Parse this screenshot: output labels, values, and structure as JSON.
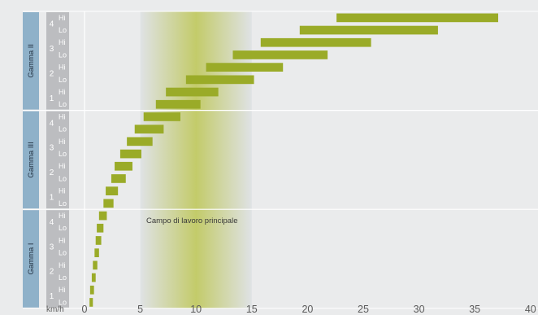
{
  "chart_data": {
    "type": "bar",
    "orientation": "horizontal-range",
    "x_unit": "km/h",
    "x_ticks": [
      0,
      5,
      10,
      15,
      20,
      25,
      30,
      35,
      40
    ],
    "xlim": [
      0,
      40
    ],
    "annotation": "Campo di lavoro principale",
    "highlight_range": [
      5,
      15
    ],
    "colors": {
      "bar": "#9aab28",
      "group_band": "#8fb1c9",
      "gear_band": "#bcbdc0",
      "highlight": "#c3cb6a",
      "grid": "#ffffff"
    },
    "groups": [
      {
        "name": "Gamma II",
        "rows": [
          {
            "gear": "4",
            "range": "Hi",
            "start": 22.6,
            "end": 37.1
          },
          {
            "gear": "4",
            "range": "Lo",
            "start": 19.3,
            "end": 31.7
          },
          {
            "gear": "3",
            "range": "Hi",
            "start": 15.8,
            "end": 25.7
          },
          {
            "gear": "3",
            "range": "Lo",
            "start": 13.3,
            "end": 21.8
          },
          {
            "gear": "2",
            "range": "Hi",
            "start": 10.9,
            "end": 17.8
          },
          {
            "gear": "2",
            "range": "Lo",
            "start": 9.1,
            "end": 15.2
          },
          {
            "gear": "1",
            "range": "Hi",
            "start": 7.3,
            "end": 12.0
          },
          {
            "gear": "1",
            "range": "Lo",
            "start": 6.4,
            "end": 10.4
          }
        ]
      },
      {
        "name": "Gamma III",
        "rows": [
          {
            "gear": "4",
            "range": "Hi",
            "start": 5.3,
            "end": 8.6
          },
          {
            "gear": "4",
            "range": "Lo",
            "start": 4.5,
            "end": 7.1
          },
          {
            "gear": "3",
            "range": "Hi",
            "start": 3.8,
            "end": 6.1
          },
          {
            "gear": "3",
            "range": "Lo",
            "start": 3.2,
            "end": 5.1
          },
          {
            "gear": "2",
            "range": "Hi",
            "start": 2.7,
            "end": 4.3
          },
          {
            "gear": "2",
            "range": "Lo",
            "start": 2.4,
            "end": 3.7
          },
          {
            "gear": "1",
            "range": "Hi",
            "start": 1.9,
            "end": 3.0
          },
          {
            "gear": "1",
            "range": "Lo",
            "start": 1.7,
            "end": 2.6
          }
        ]
      },
      {
        "name": "Gamma I",
        "rows": [
          {
            "gear": "4",
            "range": "Hi",
            "start": 1.3,
            "end": 2.0
          },
          {
            "gear": "4",
            "range": "Lo",
            "start": 1.1,
            "end": 1.7
          },
          {
            "gear": "3",
            "range": "Hi",
            "start": 1.0,
            "end": 1.5
          },
          {
            "gear": "3",
            "range": "Lo",
            "start": 0.9,
            "end": 1.3
          },
          {
            "gear": "2",
            "range": "Hi",
            "start": 0.75,
            "end": 1.15
          },
          {
            "gear": "2",
            "range": "Lo",
            "start": 0.65,
            "end": 1.0
          },
          {
            "gear": "1",
            "range": "Hi",
            "start": 0.5,
            "end": 0.85
          },
          {
            "gear": "1",
            "range": "Lo",
            "start": 0.45,
            "end": 0.75
          }
        ]
      }
    ]
  }
}
